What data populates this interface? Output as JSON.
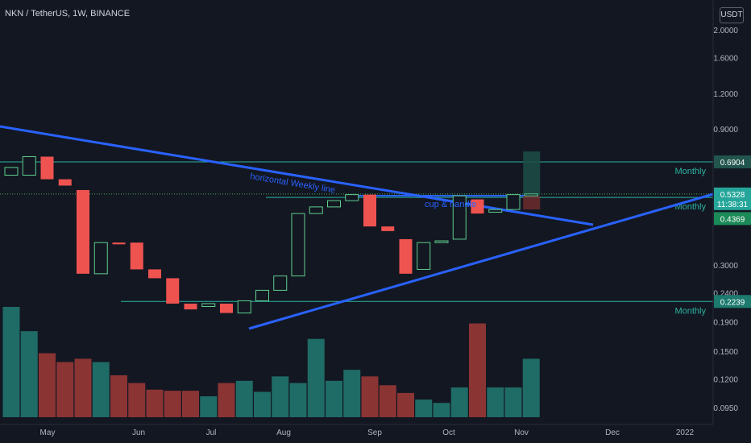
{
  "header": {
    "title": "NKN / TetherUS, 1W, BINANCE",
    "currency": "USDT"
  },
  "colors": {
    "bg": "#131722",
    "up": "#26a69a",
    "down": "#ef5350",
    "upFill": "#131722",
    "trend": "#2962ff",
    "level": "#2bb3a0",
    "axisText": "#b2b5be"
  },
  "chart_data": {
    "type": "candlestick",
    "scale": "log",
    "ylim": [
      0.083,
      2.45
    ],
    "y_ticks": [
      "2.0000",
      "1.6000",
      "1.2000",
      "0.9000",
      "0.3000",
      "0.2400",
      "0.1900",
      "0.1500",
      "0.1200",
      "0.0950"
    ],
    "x_ticks": [
      "May",
      "Jun",
      "Jul",
      "Aug",
      "Sep",
      "Oct",
      "Nov",
      "Dec",
      "2022"
    ],
    "candles": [
      {
        "o": 0.62,
        "c": 0.66
      },
      {
        "o": 0.62,
        "c": 0.72
      },
      {
        "o": 0.72,
        "c": 0.6
      },
      {
        "o": 0.6,
        "c": 0.57
      },
      {
        "o": 0.55,
        "c": 0.28
      },
      {
        "o": 0.28,
        "c": 0.36
      },
      {
        "o": 0.36,
        "c": 0.355
      },
      {
        "o": 0.36,
        "c": 0.29
      },
      {
        "o": 0.29,
        "c": 0.27
      },
      {
        "o": 0.27,
        "c": 0.22
      },
      {
        "o": 0.22,
        "c": 0.21
      },
      {
        "o": 0.215,
        "c": 0.22
      },
      {
        "o": 0.22,
        "c": 0.204
      },
      {
        "o": 0.204,
        "c": 0.225
      },
      {
        "o": 0.225,
        "c": 0.245
      },
      {
        "o": 0.245,
        "c": 0.275
      },
      {
        "o": 0.275,
        "c": 0.455
      },
      {
        "o": 0.455,
        "c": 0.48
      },
      {
        "o": 0.48,
        "c": 0.505
      },
      {
        "o": 0.505,
        "c": 0.53
      },
      {
        "o": 0.53,
        "c": 0.41
      },
      {
        "o": 0.41,
        "c": 0.395
      },
      {
        "o": 0.37,
        "c": 0.28
      },
      {
        "o": 0.29,
        "c": 0.36
      },
      {
        "o": 0.36,
        "c": 0.365
      },
      {
        "o": 0.37,
        "c": 0.525
      },
      {
        "o": 0.51,
        "c": 0.455
      },
      {
        "o": 0.46,
        "c": 0.47
      },
      {
        "o": 0.47,
        "c": 0.53
      },
      {
        "o": 0.525,
        "c": 0.5328
      }
    ],
    "volumes": [
      100,
      78,
      58,
      50,
      53,
      50,
      38,
      31,
      25,
      24,
      24,
      19,
      31,
      33,
      23,
      37,
      31,
      71,
      33,
      43,
      37,
      29,
      22,
      16,
      13,
      27,
      85,
      27,
      27,
      53
    ],
    "levels": [
      {
        "value": "0.6904",
        "label": "Monthly"
      },
      {
        "value": "0.5181",
        "label": "Monthly"
      },
      {
        "value": "0.2239",
        "label": "Monthly"
      }
    ],
    "price_tags": [
      {
        "value": "0.5328",
        "sub": "11:38:31"
      },
      {
        "value": "0.4369"
      }
    ],
    "annotations": [
      "horizontal Weekly line",
      "cup & handle"
    ]
  }
}
